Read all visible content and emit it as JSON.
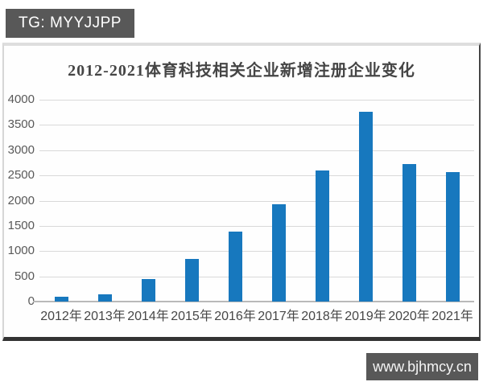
{
  "watermarks": {
    "top_left": "TG: MYYJJPP",
    "bottom_right": "www.bjhmcy.cn"
  },
  "chart_data": {
    "type": "bar",
    "title": "2012-2021体育科技相关企业新增注册企业变化",
    "categories": [
      "2012年",
      "2013年",
      "2014年",
      "2015年",
      "2016年",
      "2017年",
      "2018年",
      "2019年",
      "2020年",
      "2021年"
    ],
    "values": [
      100,
      150,
      440,
      840,
      1390,
      1930,
      2590,
      3760,
      2720,
      2560
    ],
    "xlabel": "",
    "ylabel": "",
    "ylim": [
      0,
      4000
    ],
    "yticks": [
      0,
      500,
      1000,
      1500,
      2000,
      2500,
      3000,
      3500,
      4000
    ],
    "grid": true,
    "legend": false,
    "bar_color": "#1778be"
  },
  "colors": {
    "bar": "#1778be",
    "gridline": "#d9d9d9",
    "axis_line": "#b9b9b9",
    "tick_label": "#595959",
    "title_text": "#454545",
    "badge_background": "#585858",
    "badge_text": "#ffffff"
  }
}
